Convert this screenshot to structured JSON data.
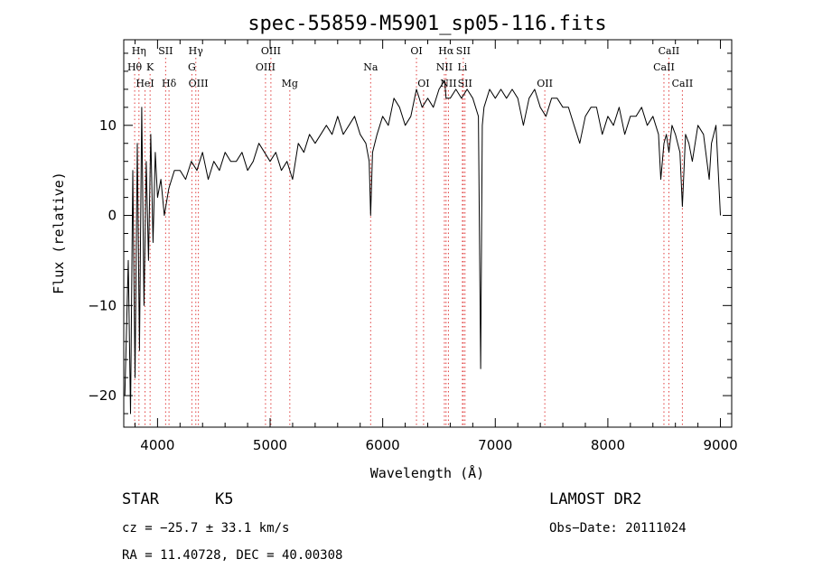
{
  "chart_data": {
    "type": "line",
    "title": "spec-55859-M5901_sp05-116.fits",
    "xlabel": "Wavelength (Å)",
    "ylabel": "Flux (relative)",
    "xlim": [
      3700,
      9100
    ],
    "ylim": [
      -23.5,
      19.5
    ],
    "xticks": [
      4000,
      5000,
      6000,
      7000,
      8000,
      9000
    ],
    "yticks": [
      -20,
      -10,
      0,
      10
    ],
    "ytick_labels": [
      "−20",
      "−10",
      "0",
      "10"
    ],
    "grid": false,
    "series": [
      {
        "x": [
          3710,
          3740,
          3760,
          3780,
          3800,
          3820,
          3840,
          3860,
          3880,
          3900,
          3920,
          3940,
          3960,
          3980,
          4000,
          4030,
          4060,
          4100,
          4150,
          4200,
          4250,
          4300,
          4350,
          4400,
          4450,
          4500,
          4550,
          4600,
          4650,
          4700,
          4750,
          4800,
          4850,
          4900,
          4950,
          5000,
          5050,
          5100,
          5150,
          5200,
          5250,
          5300,
          5350,
          5400,
          5450,
          5500,
          5550,
          5600,
          5650,
          5700,
          5750,
          5800,
          5850,
          5880,
          5893,
          5910,
          5950,
          6000,
          6050,
          6100,
          6150,
          6200,
          6250,
          6300,
          6350,
          6400,
          6450,
          6500,
          6550,
          6563,
          6600,
          6650,
          6700,
          6750,
          6800,
          6850,
          6870,
          6885,
          6900,
          6950,
          7000,
          7050,
          7100,
          7150,
          7200,
          7250,
          7300,
          7350,
          7400,
          7450,
          7500,
          7550,
          7600,
          7650,
          7700,
          7750,
          7800,
          7850,
          7900,
          7950,
          8000,
          8050,
          8100,
          8150,
          8200,
          8250,
          8300,
          8350,
          8400,
          8450,
          8470,
          8498,
          8520,
          8542,
          8570,
          8600,
          8640,
          8662,
          8690,
          8720,
          8750,
          8800,
          8850,
          8900,
          8920,
          8960,
          9000
        ],
        "y": [
          -20,
          -5,
          -22,
          5,
          -18,
          8,
          -15,
          12,
          -10,
          6,
          -5,
          9,
          -3,
          7,
          2,
          4,
          0,
          3,
          5,
          5,
          4,
          6,
          5,
          7,
          4,
          6,
          5,
          7,
          6,
          6,
          7,
          5,
          6,
          8,
          7,
          6,
          7,
          5,
          6,
          4,
          8,
          7,
          9,
          8,
          9,
          10,
          9,
          11,
          9,
          10,
          11,
          9,
          8,
          6,
          0,
          7,
          9,
          11,
          10,
          13,
          12,
          10,
          11,
          14,
          12,
          13,
          12,
          14,
          15,
          13,
          13,
          14,
          13,
          14,
          13,
          11,
          -17,
          10,
          12,
          14,
          13,
          14,
          13,
          14,
          13,
          10,
          13,
          14,
          12,
          11,
          13,
          13,
          12,
          12,
          10,
          8,
          11,
          12,
          12,
          9,
          11,
          10,
          12,
          9,
          11,
          11,
          12,
          10,
          11,
          9,
          4,
          8,
          9,
          7,
          10,
          9,
          7,
          1,
          9,
          8,
          6,
          10,
          9,
          4,
          8,
          10,
          0
        ]
      }
    ],
    "lines": [
      {
        "label": "Hη",
        "x": 3835,
        "row": 0,
        "color": "#e04040"
      },
      {
        "label": "Hθ",
        "x": 3797,
        "row": 1,
        "color": "#e04040"
      },
      {
        "label": "HeI",
        "x": 3889,
        "row": 2,
        "color": "#e04040"
      },
      {
        "label": "SII",
        "x": 4072,
        "row": 0,
        "color": "#e04040"
      },
      {
        "label": "K",
        "x": 3934,
        "row": 1,
        "color": "#e04040"
      },
      {
        "label": "Hδ",
        "x": 4102,
        "row": 2,
        "color": "#e04040"
      },
      {
        "label": "Hγ",
        "x": 4340,
        "row": 0,
        "color": "#e04040"
      },
      {
        "label": "G",
        "x": 4305,
        "row": 1,
        "color": "#e04040"
      },
      {
        "label": "OIII",
        "x": 4363,
        "row": 2,
        "color": "#e04040"
      },
      {
        "label": "OIII",
        "x": 5007,
        "row": 0,
        "color": "#e04040"
      },
      {
        "label": "OIII",
        "x": 4959,
        "row": 1,
        "color": "#e04040"
      },
      {
        "label": "Mg",
        "x": 5175,
        "row": 2,
        "color": "#e04040"
      },
      {
        "label": "Na",
        "x": 5893,
        "row": 1,
        "color": "#e04040"
      },
      {
        "label": "OI",
        "x": 6300,
        "row": 0,
        "color": "#e04040"
      },
      {
        "label": "OI",
        "x": 6363,
        "row": 2,
        "color": "#e04040"
      },
      {
        "label": "Hα",
        "x": 6563,
        "row": 0,
        "color": "#e04040"
      },
      {
        "label": "SII",
        "x": 6716,
        "row": 0,
        "color": "#e04040"
      },
      {
        "label": "NII",
        "x": 6548,
        "row": 1,
        "color": "#e04040"
      },
      {
        "label": "Li",
        "x": 6708,
        "row": 1,
        "color": "#e04040"
      },
      {
        "label": "NII",
        "x": 6584,
        "row": 2,
        "color": "#e04040"
      },
      {
        "label": "SII",
        "x": 6731,
        "row": 2,
        "color": "#e04040"
      },
      {
        "label": "OII",
        "x": 7440,
        "row": 2,
        "color": "#e04040"
      },
      {
        "label": "CaII",
        "x": 8542,
        "row": 0,
        "color": "#e04040"
      },
      {
        "label": "CaII",
        "x": 8498,
        "row": 1,
        "color": "#e04040"
      },
      {
        "label": "CaII",
        "x": 8662,
        "row": 2,
        "color": "#e04040"
      }
    ]
  },
  "info": {
    "class": "STAR",
    "subclass": "K5",
    "survey": "LAMOST DR2",
    "cz": "cz = −25.7 ± 33.1 km/s",
    "obs_date": "Obs−Date: 20111024",
    "radec": "RA =  11.40728, DEC =  40.00308"
  }
}
